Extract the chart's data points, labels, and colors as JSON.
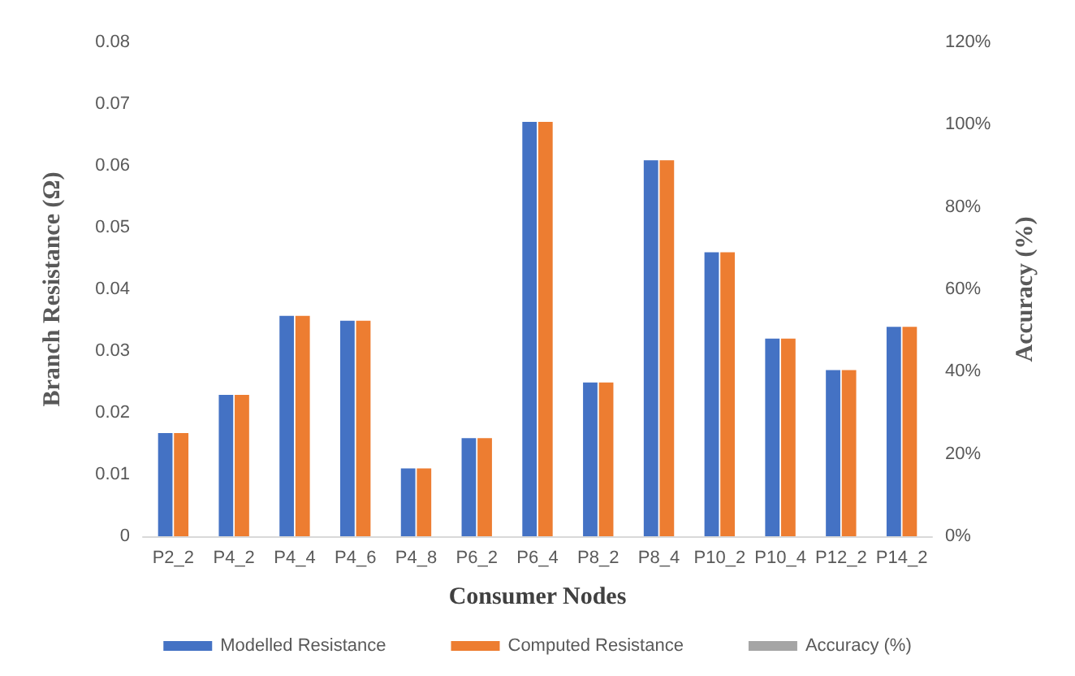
{
  "chart_data": {
    "type": "bar",
    "xlabel": "Consumer Nodes",
    "ylabel": "Branch Resistance (Ω)",
    "y2label": "Accuracy (%)",
    "categories": [
      "P2_2",
      "P4_2",
      "P4_4",
      "P4_6",
      "P4_8",
      "P6_2",
      "P6_4",
      "P8_2",
      "P8_4",
      "P10_2",
      "P10_4",
      "P12_2",
      "P14_2"
    ],
    "series": [
      {
        "name": "Modelled Resistance",
        "color": "#4472c4",
        "values": [
          0.0167,
          0.0229,
          0.0357,
          0.0349,
          0.011,
          0.0159,
          0.0671,
          0.0249,
          0.0609,
          0.046,
          0.032,
          0.0269,
          0.0339
        ]
      },
      {
        "name": "Computed Resistance",
        "color": "#ed7d31",
        "values": [
          0.0167,
          0.0229,
          0.0357,
          0.0349,
          0.011,
          0.0159,
          0.0671,
          0.0249,
          0.0609,
          0.046,
          0.032,
          0.0269,
          0.0339
        ]
      },
      {
        "name": "Accuracy (%)",
        "type": "line",
        "color": "#a5a5a5",
        "values": [
          null,
          null,
          null,
          null,
          null,
          null,
          null,
          null,
          null,
          null,
          null,
          null,
          null
        ]
      }
    ],
    "ylim": [
      0,
      0.08
    ],
    "yticks": [
      0,
      0.01,
      0.02,
      0.03,
      0.04,
      0.05,
      0.06,
      0.07,
      0.08
    ],
    "y2lim": [
      0,
      120
    ],
    "y2ticks": [
      {
        "value": 0,
        "label": "0%"
      },
      {
        "value": 20,
        "label": "20%"
      },
      {
        "value": 40,
        "label": "40%"
      },
      {
        "value": 60,
        "label": "60%"
      },
      {
        "value": 80,
        "label": "80%"
      },
      {
        "value": 100,
        "label": "100%"
      },
      {
        "value": 120,
        "label": "120%"
      }
    ],
    "grid": false,
    "legend": "bottom"
  }
}
